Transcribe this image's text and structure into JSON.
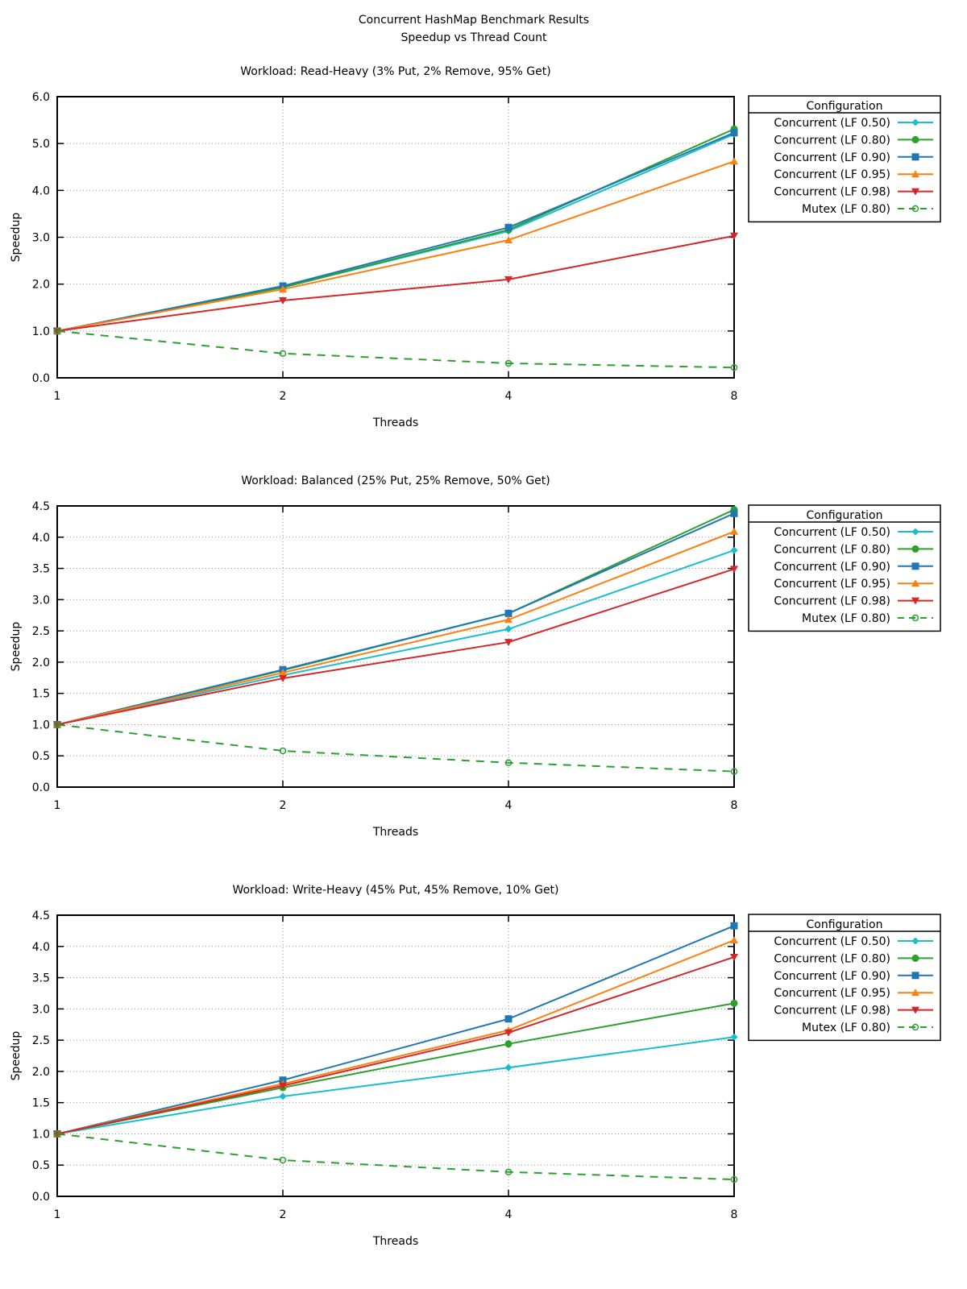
{
  "title": "Concurrent HashMap Benchmark Results",
  "subtitle": "Speedup vs Thread Count",
  "chart_data": [
    {
      "type": "line",
      "title": "Workload: Read-Heavy (3% Put, 2% Remove, 95% Get)",
      "xlabel": "Threads",
      "ylabel": "Speedup",
      "x": [
        1,
        2,
        4,
        8
      ],
      "x_scale": "log2",
      "ylim": [
        0,
        6
      ],
      "yticks": [
        "0.0",
        "1.0",
        "2.0",
        "3.0",
        "4.0",
        "5.0",
        "6.0"
      ],
      "xticks": [
        "1",
        "2",
        "4",
        "8"
      ],
      "grid": true,
      "legend_title": "Configuration",
      "legend_position": "outside-right",
      "series": [
        {
          "name": "Concurrent (LF 0.50)",
          "values": [
            1.0,
            1.93,
            3.13,
            5.2
          ]
        },
        {
          "name": "Concurrent (LF 0.80)",
          "values": [
            1.0,
            1.93,
            3.16,
            5.31
          ]
        },
        {
          "name": "Concurrent (LF 0.90)",
          "values": [
            1.0,
            1.96,
            3.21,
            5.23
          ]
        },
        {
          "name": "Concurrent (LF 0.95)",
          "values": [
            1.0,
            1.89,
            2.94,
            4.62
          ]
        },
        {
          "name": "Concurrent (LF 0.98)",
          "values": [
            1.0,
            1.65,
            2.1,
            3.03
          ]
        },
        {
          "name": "Mutex (LF 0.80)",
          "values": [
            1.0,
            0.52,
            0.31,
            0.22
          ]
        }
      ]
    },
    {
      "type": "line",
      "title": "Workload: Balanced (25% Put, 25% Remove, 50% Get)",
      "xlabel": "Threads",
      "ylabel": "Speedup",
      "x": [
        1,
        2,
        4,
        8
      ],
      "x_scale": "log2",
      "ylim": [
        0,
        4.5
      ],
      "yticks": [
        "0.0",
        "0.5",
        "1.0",
        "1.5",
        "2.0",
        "2.5",
        "3.0",
        "3.5",
        "4.0",
        "4.5"
      ],
      "xticks": [
        "1",
        "2",
        "4",
        "8"
      ],
      "grid": true,
      "legend_title": "Configuration",
      "legend_position": "outside-right",
      "series": [
        {
          "name": "Concurrent (LF 0.50)",
          "values": [
            1.0,
            1.79,
            2.53,
            3.79
          ]
        },
        {
          "name": "Concurrent (LF 0.80)",
          "values": [
            1.0,
            1.87,
            2.78,
            4.44
          ]
        },
        {
          "name": "Concurrent (LF 0.90)",
          "values": [
            1.0,
            1.88,
            2.78,
            4.38
          ]
        },
        {
          "name": "Concurrent (LF 0.95)",
          "values": [
            1.0,
            1.83,
            2.68,
            4.09
          ]
        },
        {
          "name": "Concurrent (LF 0.98)",
          "values": [
            1.0,
            1.74,
            2.32,
            3.49
          ]
        },
        {
          "name": "Mutex (LF 0.80)",
          "values": [
            1.0,
            0.58,
            0.39,
            0.25
          ]
        }
      ]
    },
    {
      "type": "line",
      "title": "Workload: Write-Heavy (45% Put, 45% Remove, 10% Get)",
      "xlabel": "Threads",
      "ylabel": "Speedup",
      "x": [
        1,
        2,
        4,
        8
      ],
      "x_scale": "log2",
      "ylim": [
        0,
        4.5
      ],
      "yticks": [
        "0.0",
        "0.5",
        "1.0",
        "1.5",
        "2.0",
        "2.5",
        "3.0",
        "3.5",
        "4.0",
        "4.5"
      ],
      "xticks": [
        "1",
        "2",
        "4",
        "8"
      ],
      "grid": true,
      "legend_title": "Configuration",
      "legend_position": "outside-right",
      "series": [
        {
          "name": "Concurrent (LF 0.50)",
          "values": [
            1.0,
            1.6,
            2.06,
            2.55
          ]
        },
        {
          "name": "Concurrent (LF 0.80)",
          "values": [
            1.0,
            1.74,
            2.44,
            3.09
          ]
        },
        {
          "name": "Concurrent (LF 0.90)",
          "values": [
            1.0,
            1.86,
            2.84,
            4.33
          ]
        },
        {
          "name": "Concurrent (LF 0.95)",
          "values": [
            1.0,
            1.8,
            2.66,
            4.1
          ]
        },
        {
          "name": "Concurrent (LF 0.98)",
          "values": [
            1.0,
            1.77,
            2.62,
            3.83
          ]
        },
        {
          "name": "Mutex (LF 0.80)",
          "values": [
            1.0,
            0.58,
            0.39,
            0.27
          ]
        }
      ]
    }
  ],
  "series_style": [
    {
      "color": "#17becf",
      "marker": "diamond",
      "dash": false
    },
    {
      "color": "#2ca02c",
      "marker": "circle-filled",
      "dash": false
    },
    {
      "color": "#1f77b4",
      "marker": "square",
      "dash": false
    },
    {
      "color": "#ff7f0e",
      "marker": "triangle-up",
      "dash": false
    },
    {
      "color": "#d62728",
      "marker": "triangle-down",
      "dash": false
    },
    {
      "color": "#2ca02c",
      "marker": "circle-open",
      "dash": true
    }
  ]
}
